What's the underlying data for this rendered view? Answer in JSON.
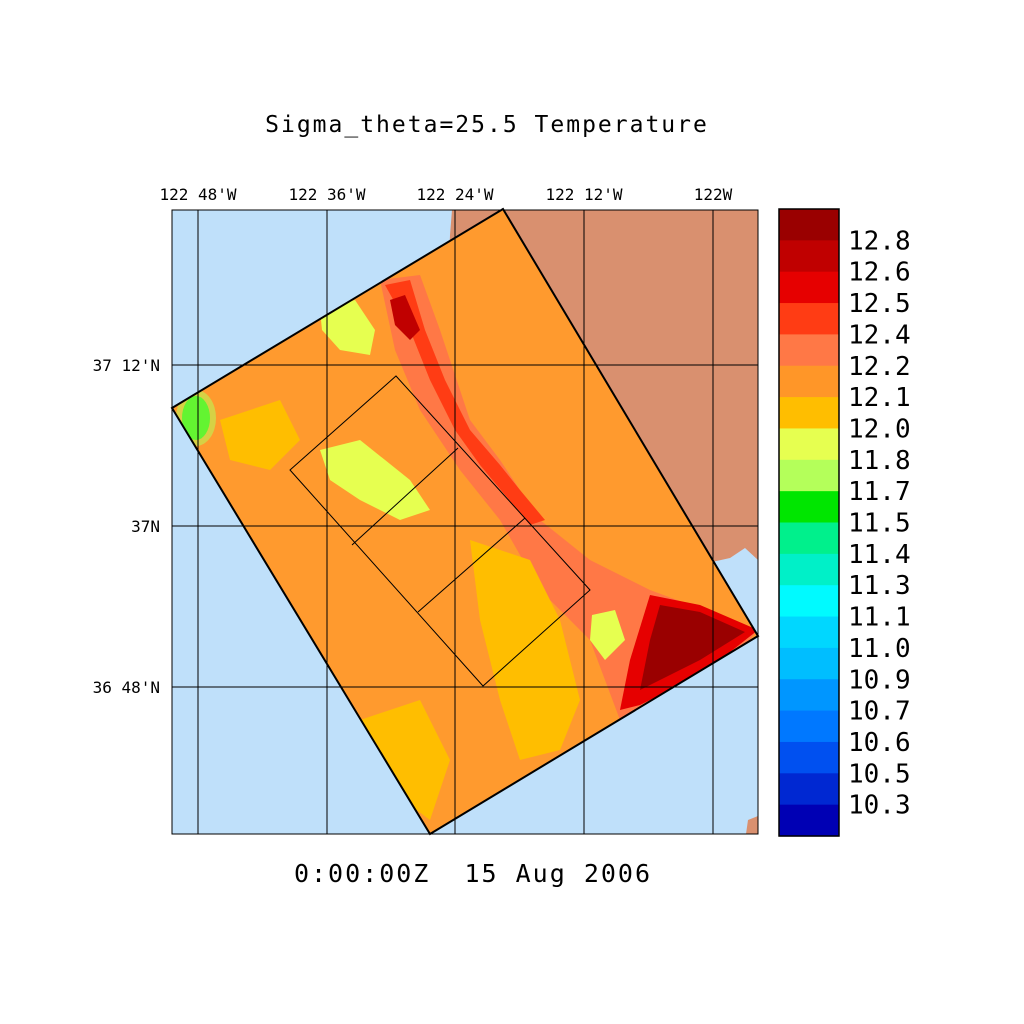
{
  "title": "Sigma_theta=25.5 Temperature",
  "timestamp": "0:00:00Z  15 Aug 2006",
  "lon_ticks": [
    "122 48'W",
    "122 36'W",
    "122 24'W",
    "122 12'W",
    "122W"
  ],
  "lat_ticks": [
    "37 12'N",
    "37N",
    "36 48'N"
  ],
  "colorbar": {
    "labels": [
      "12.8",
      "12.6",
      "12.5",
      "12.4",
      "12.2",
      "12.1",
      "12.0",
      "11.8",
      "11.7",
      "11.5",
      "11.4",
      "11.3",
      "11.1",
      "11.0",
      "10.9",
      "10.7",
      "10.6",
      "10.5",
      "10.3"
    ],
    "colors": [
      "#9a0000",
      "#c00000",
      "#e60000",
      "#ff3c14",
      "#ff7846",
      "#ff9628",
      "#ffbe00",
      "#e6ff50",
      "#b4ff5a",
      "#00e600",
      "#00f08c",
      "#00f0c8",
      "#00faff",
      "#00d7ff",
      "#00beff",
      "#0096ff",
      "#0078ff",
      "#0050f0",
      "#0028d2",
      "#0000b4"
    ]
  },
  "colors": {
    "ocean": "#bfe0fa",
    "land": "#d9906f",
    "domain_fill": "#ff9a2e"
  }
}
